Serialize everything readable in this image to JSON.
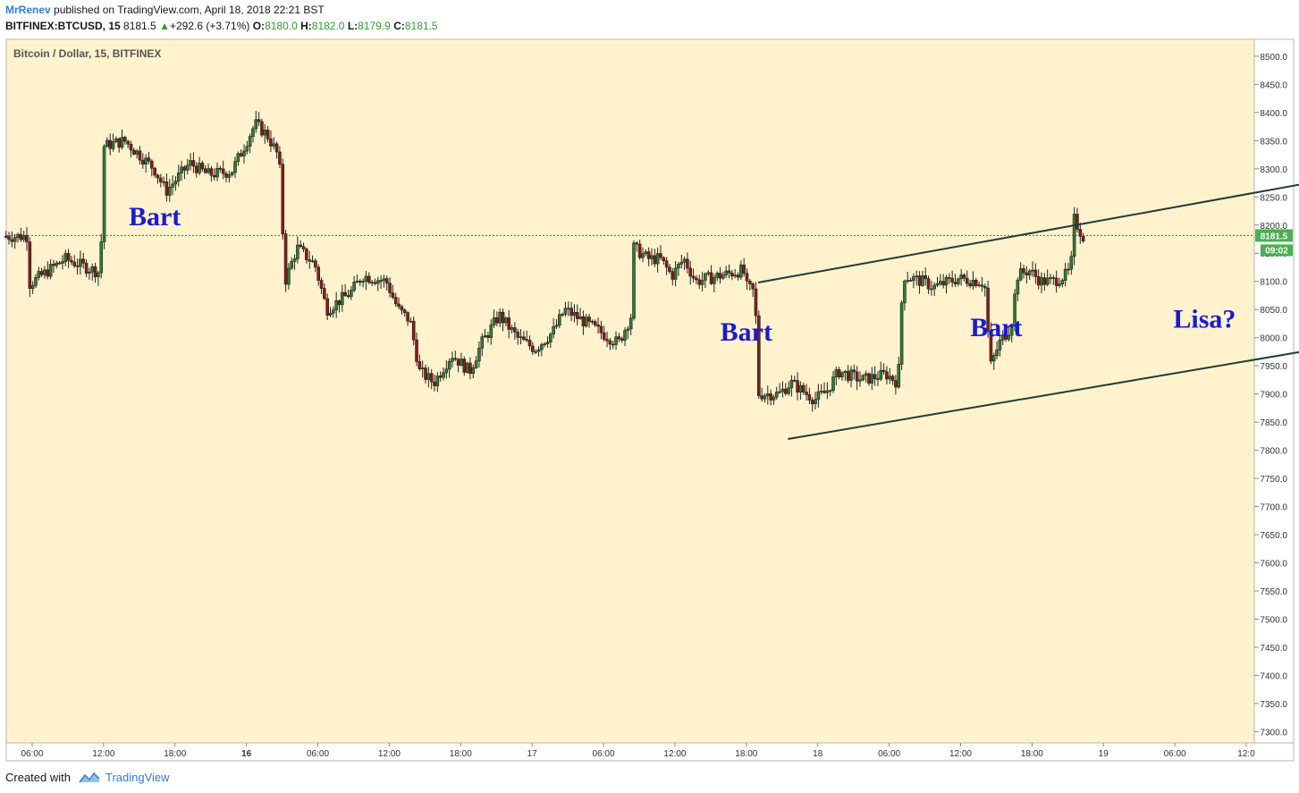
{
  "header": {
    "author": "MrRenev",
    "published": " published on TradingView.com, April 18, 2018 22:21 BST",
    "symbol": "BITFINEX:BTCUSD, 15",
    "last": "8181.5",
    "change": "+292.6 (+3.71%)",
    "o_label": "O:",
    "o_value": "8180.0",
    "h_label": "H:",
    "h_value": "8182.0",
    "l_label": "L:",
    "l_value": "8179.9",
    "c_label": "C:",
    "c_value": "8181.5"
  },
  "footer": {
    "created_with": "Created with",
    "brand": "TradingView"
  },
  "colors": {
    "background": "#fff2cc",
    "up": "#2e7d32",
    "down": "#8b1a1a",
    "price_tag": "#4caf50",
    "annotation": "#1a1ad6",
    "trendline": "#203a3a"
  },
  "chart_data": {
    "type": "candlestick",
    "title": "Bitcoin / Dollar, 15, BITFINEX",
    "ylim": [
      7280,
      8530
    ],
    "y_ticks": [
      7300,
      7350,
      7400,
      7450,
      7500,
      7550,
      7600,
      7650,
      7700,
      7750,
      7800,
      7850,
      7900,
      7950,
      8000,
      8050,
      8100,
      8150,
      8200,
      8250,
      8300,
      8350,
      8400,
      8450,
      8500
    ],
    "x_range_hours": [
      -3.5,
      84.5
    ],
    "x_ticks": [
      {
        "label": "06:00",
        "h": 0
      },
      {
        "label": "12:00",
        "h": 6
      },
      {
        "label": "18:00",
        "h": 12
      },
      {
        "label": "16",
        "h": 18,
        "bold": true
      },
      {
        "label": "06:00",
        "h": 24
      },
      {
        "label": "12:00",
        "h": 30
      },
      {
        "label": "18:00",
        "h": 36
      },
      {
        "label": "17",
        "h": 42
      },
      {
        "label": "06:00",
        "h": 48
      },
      {
        "label": "12:00",
        "h": 54
      },
      {
        "label": "18:00",
        "h": 60
      },
      {
        "label": "18",
        "h": 66
      },
      {
        "label": "06:00",
        "h": 72
      },
      {
        "label": "12:00",
        "h": 78
      },
      {
        "label": "18:00",
        "h": 84
      },
      {
        "label": "19",
        "h": 90
      },
      {
        "label": "06:00",
        "h": 96
      },
      {
        "label": "12:0",
        "h": 102
      }
    ],
    "current_price": 8181.5,
    "current_price_label": "8181.5",
    "countdown_label": "09:02",
    "keypoints": [
      [
        0,
        8095
      ],
      [
        3,
        8140
      ],
      [
        6,
        8115
      ],
      [
        6.2,
        8340
      ],
      [
        8,
        8350
      ],
      [
        10.5,
        8300
      ],
      [
        11.5,
        8260
      ],
      [
        13.5,
        8310
      ],
      [
        15,
        8290
      ],
      [
        17,
        8295
      ],
      [
        19,
        8380
      ],
      [
        20,
        8360
      ],
      [
        21,
        8320
      ],
      [
        21.5,
        8100
      ],
      [
        22.5,
        8160
      ],
      [
        24,
        8130
      ],
      [
        25,
        8050
      ],
      [
        27,
        8080
      ],
      [
        28,
        8110
      ],
      [
        30,
        8100
      ],
      [
        31,
        8050
      ],
      [
        32,
        8030
      ],
      [
        32.8,
        7940
      ],
      [
        34,
        7920
      ],
      [
        35.5,
        7970
      ],
      [
        37,
        7940
      ],
      [
        38,
        7990
      ],
      [
        39.5,
        8040
      ],
      [
        41,
        8000
      ],
      [
        42.5,
        7980
      ],
      [
        44,
        8010
      ],
      [
        45,
        8050
      ],
      [
        46.5,
        8030
      ],
      [
        48,
        8010
      ],
      [
        49.5,
        7990
      ],
      [
        50.6,
        8040
      ],
      [
        50.8,
        8160
      ],
      [
        52,
        8140
      ],
      [
        53,
        8140
      ],
      [
        54,
        8110
      ],
      [
        55,
        8140
      ],
      [
        56,
        8100
      ],
      [
        58,
        8110
      ],
      [
        60,
        8120
      ],
      [
        60.3,
        8090
      ],
      [
        61,
        8080
      ],
      [
        61.2,
        7900
      ],
      [
        63,
        7900
      ],
      [
        64,
        7920
      ],
      [
        66,
        7890
      ],
      [
        67,
        7905
      ],
      [
        68,
        7940
      ],
      [
        70,
        7925
      ],
      [
        72,
        7935
      ],
      [
        73,
        7920
      ],
      [
        73.4,
        8110
      ],
      [
        75,
        8100
      ],
      [
        76,
        8090
      ],
      [
        78,
        8105
      ],
      [
        80,
        8100
      ],
      [
        80.5,
        8080
      ],
      [
        80.6,
        7940
      ],
      [
        81.5,
        7990
      ],
      [
        82.5,
        8020
      ],
      [
        83,
        8110
      ],
      [
        84,
        8120
      ],
      [
        85,
        8100
      ],
      [
        86,
        8100
      ],
      [
        87,
        8110
      ],
      [
        87.5,
        8120
      ],
      [
        87.8,
        8210
      ],
      [
        88.5,
        8180
      ]
    ]
  },
  "annotations": [
    {
      "text": "Bart",
      "h": 10.3,
      "price": 8200
    },
    {
      "text": "Bart",
      "h": 60.0,
      "price": 7995
    },
    {
      "text": "Bart",
      "h": 81.0,
      "price": 8003
    },
    {
      "text": "Lisa?",
      "h": 98.5,
      "price": 8018
    }
  ],
  "trendlines": [
    {
      "h1": 61.0,
      "p1": 8098,
      "h2": 112.0,
      "p2": 8293,
      "arrow": true
    },
    {
      "h1": 63.5,
      "p1": 7820,
      "h2": 115.0,
      "p2": 8005,
      "arrow": true
    }
  ]
}
